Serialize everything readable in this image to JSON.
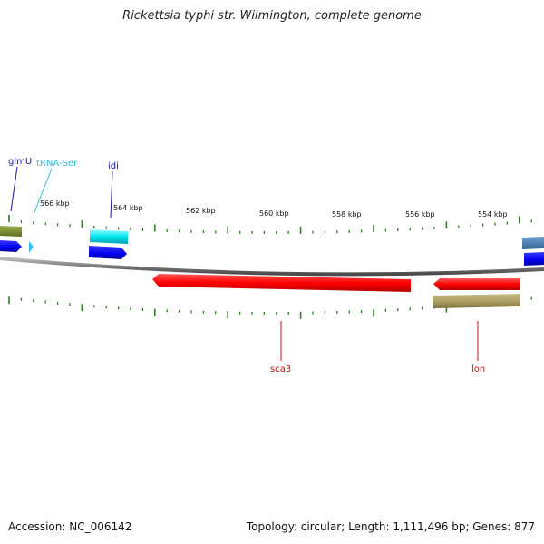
{
  "title": "Rickettsia typhi str. Wilmington, complete genome",
  "footer": {
    "accession": "Accession: NC_006142",
    "summary": "Topology: circular; Length: 1,111,496 bp; Genes: 877"
  },
  "colors": {
    "background": "#ffffff",
    "backbone": "#8a8a8a",
    "ticks": "#2e7d22",
    "gene_label_blue": "#1a1aa6",
    "gene_label_cyan": "#33bbdd",
    "gene_label_red": "#cc1111"
  },
  "scale_labels": [
    "566 kbp",
    "564 kbp",
    "562 kbp",
    "560 kbp",
    "558 kbp",
    "556 kbp",
    "554 kbp"
  ],
  "gene_labels": [
    {
      "name": "glmU",
      "color": "#1a1aa6"
    },
    {
      "name": "tRNA-Ser",
      "color": "#33bbdd"
    },
    {
      "name": "idi",
      "color": "#1a1aa6"
    },
    {
      "name": "sca3",
      "color": "#cc1111"
    },
    {
      "name": "lon",
      "color": "#cc1111"
    }
  ]
}
